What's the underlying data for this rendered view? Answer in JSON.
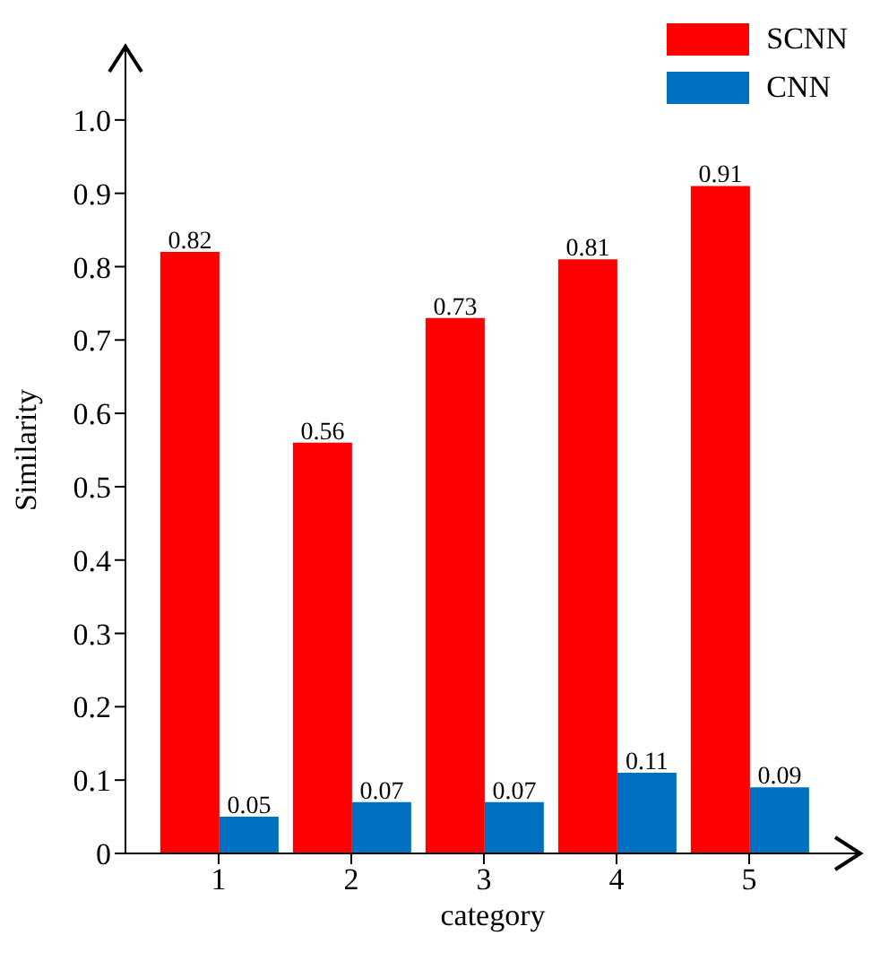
{
  "chart_data": {
    "type": "bar",
    "xlabel": "category",
    "ylabel": "Similarity",
    "categories": [
      "1",
      "2",
      "3",
      "4",
      "5"
    ],
    "series": [
      {
        "name": "SCNN",
        "color": "#ff0000",
        "values": [
          0.82,
          0.56,
          0.73,
          0.81,
          0.91
        ]
      },
      {
        "name": "CNN",
        "color": "#0070c0",
        "values": [
          0.05,
          0.07,
          0.07,
          0.11,
          0.09
        ]
      }
    ],
    "ylim": [
      0,
      1.1
    ],
    "yticks": [
      0,
      0.1,
      0.2,
      0.3,
      0.4,
      0.5,
      0.6,
      0.7,
      0.8,
      0.9,
      {
        "value": 1,
        "label": "1.0"
      }
    ],
    "data_labels": true,
    "legend": "top right",
    "grid": false
  }
}
